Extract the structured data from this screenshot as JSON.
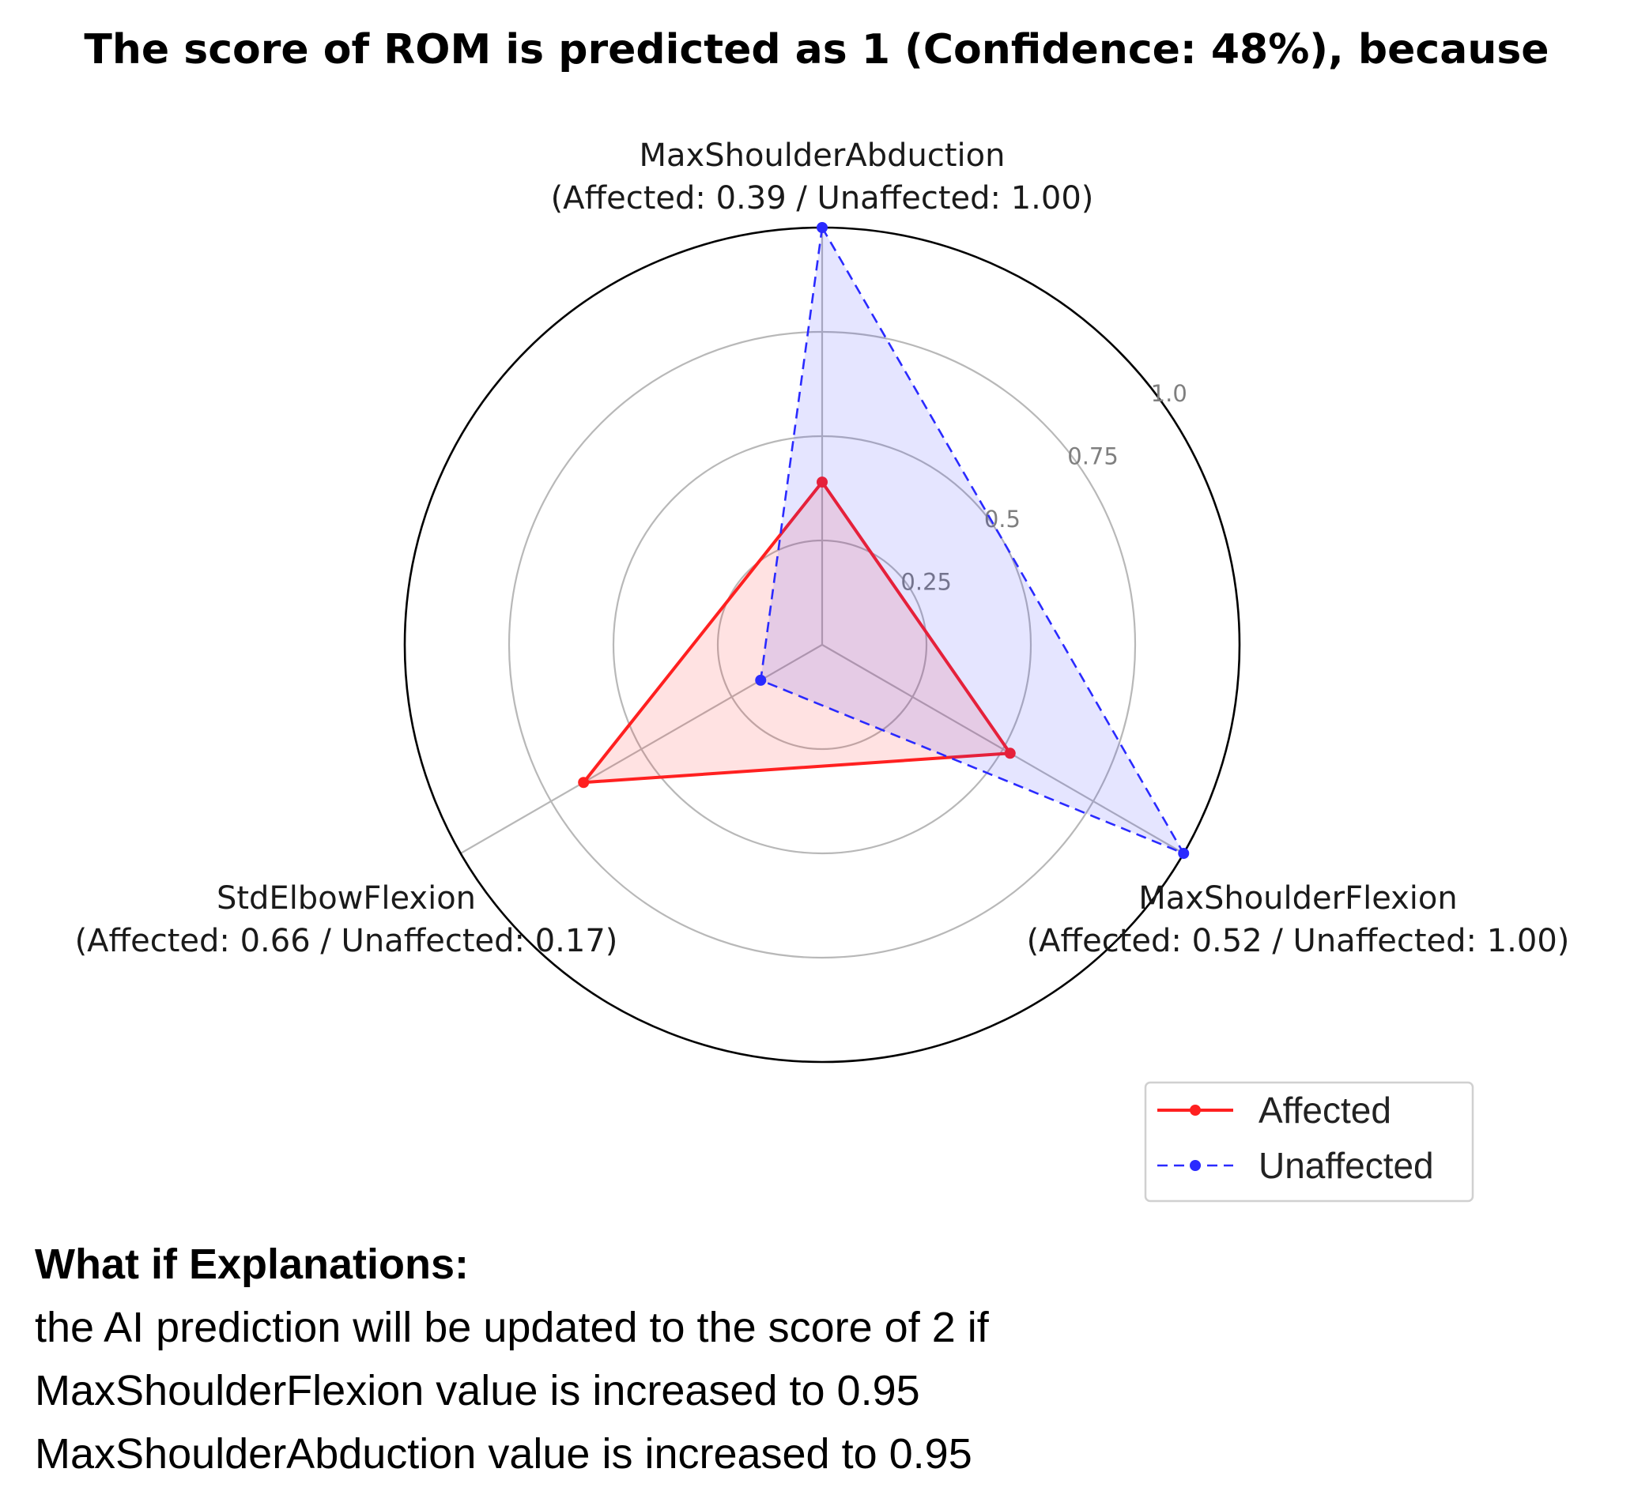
{
  "chart_data": {
    "type": "radar",
    "title": "The score of ROM is predicted as 1 (Confidence: 48%), because",
    "axes": [
      {
        "name": "MaxShoulderAbduction",
        "detail": "(Affected: 0.39 / Unaffected: 1.00)"
      },
      {
        "name": "MaxShoulderFlexion",
        "detail": "(Affected: 0.52 / Unaffected: 1.00)"
      },
      {
        "name": "StdElbowFlexion",
        "detail": "(Affected: 0.66 / Unaffected: 0.17)"
      }
    ],
    "rlim": [
      0,
      1.0
    ],
    "rticks": [
      0.25,
      0.5,
      0.75,
      1.0
    ],
    "rtick_labels": [
      "0.25",
      "0.5",
      "0.75",
      "1.0"
    ],
    "grid": true,
    "legend_position": "bottom-right",
    "series": [
      {
        "name": "Affected",
        "values": [
          0.39,
          0.52,
          0.66
        ],
        "color": "#ff2020",
        "line_style": "solid",
        "fill_opacity": 0.13
      },
      {
        "name": "Unaffected",
        "values": [
          1.0,
          1.0,
          0.17
        ],
        "color": "#2a2aff",
        "line_style": "dashed",
        "fill_opacity": 0.12
      }
    ]
  },
  "explanation": {
    "heading": "What if Explanations:",
    "lines": [
      "the AI prediction will be updated to the score of 2 if",
      "MaxShoulderFlexion value is increased to 0.95",
      "MaxShoulderAbduction value is increased to 0.95"
    ]
  }
}
